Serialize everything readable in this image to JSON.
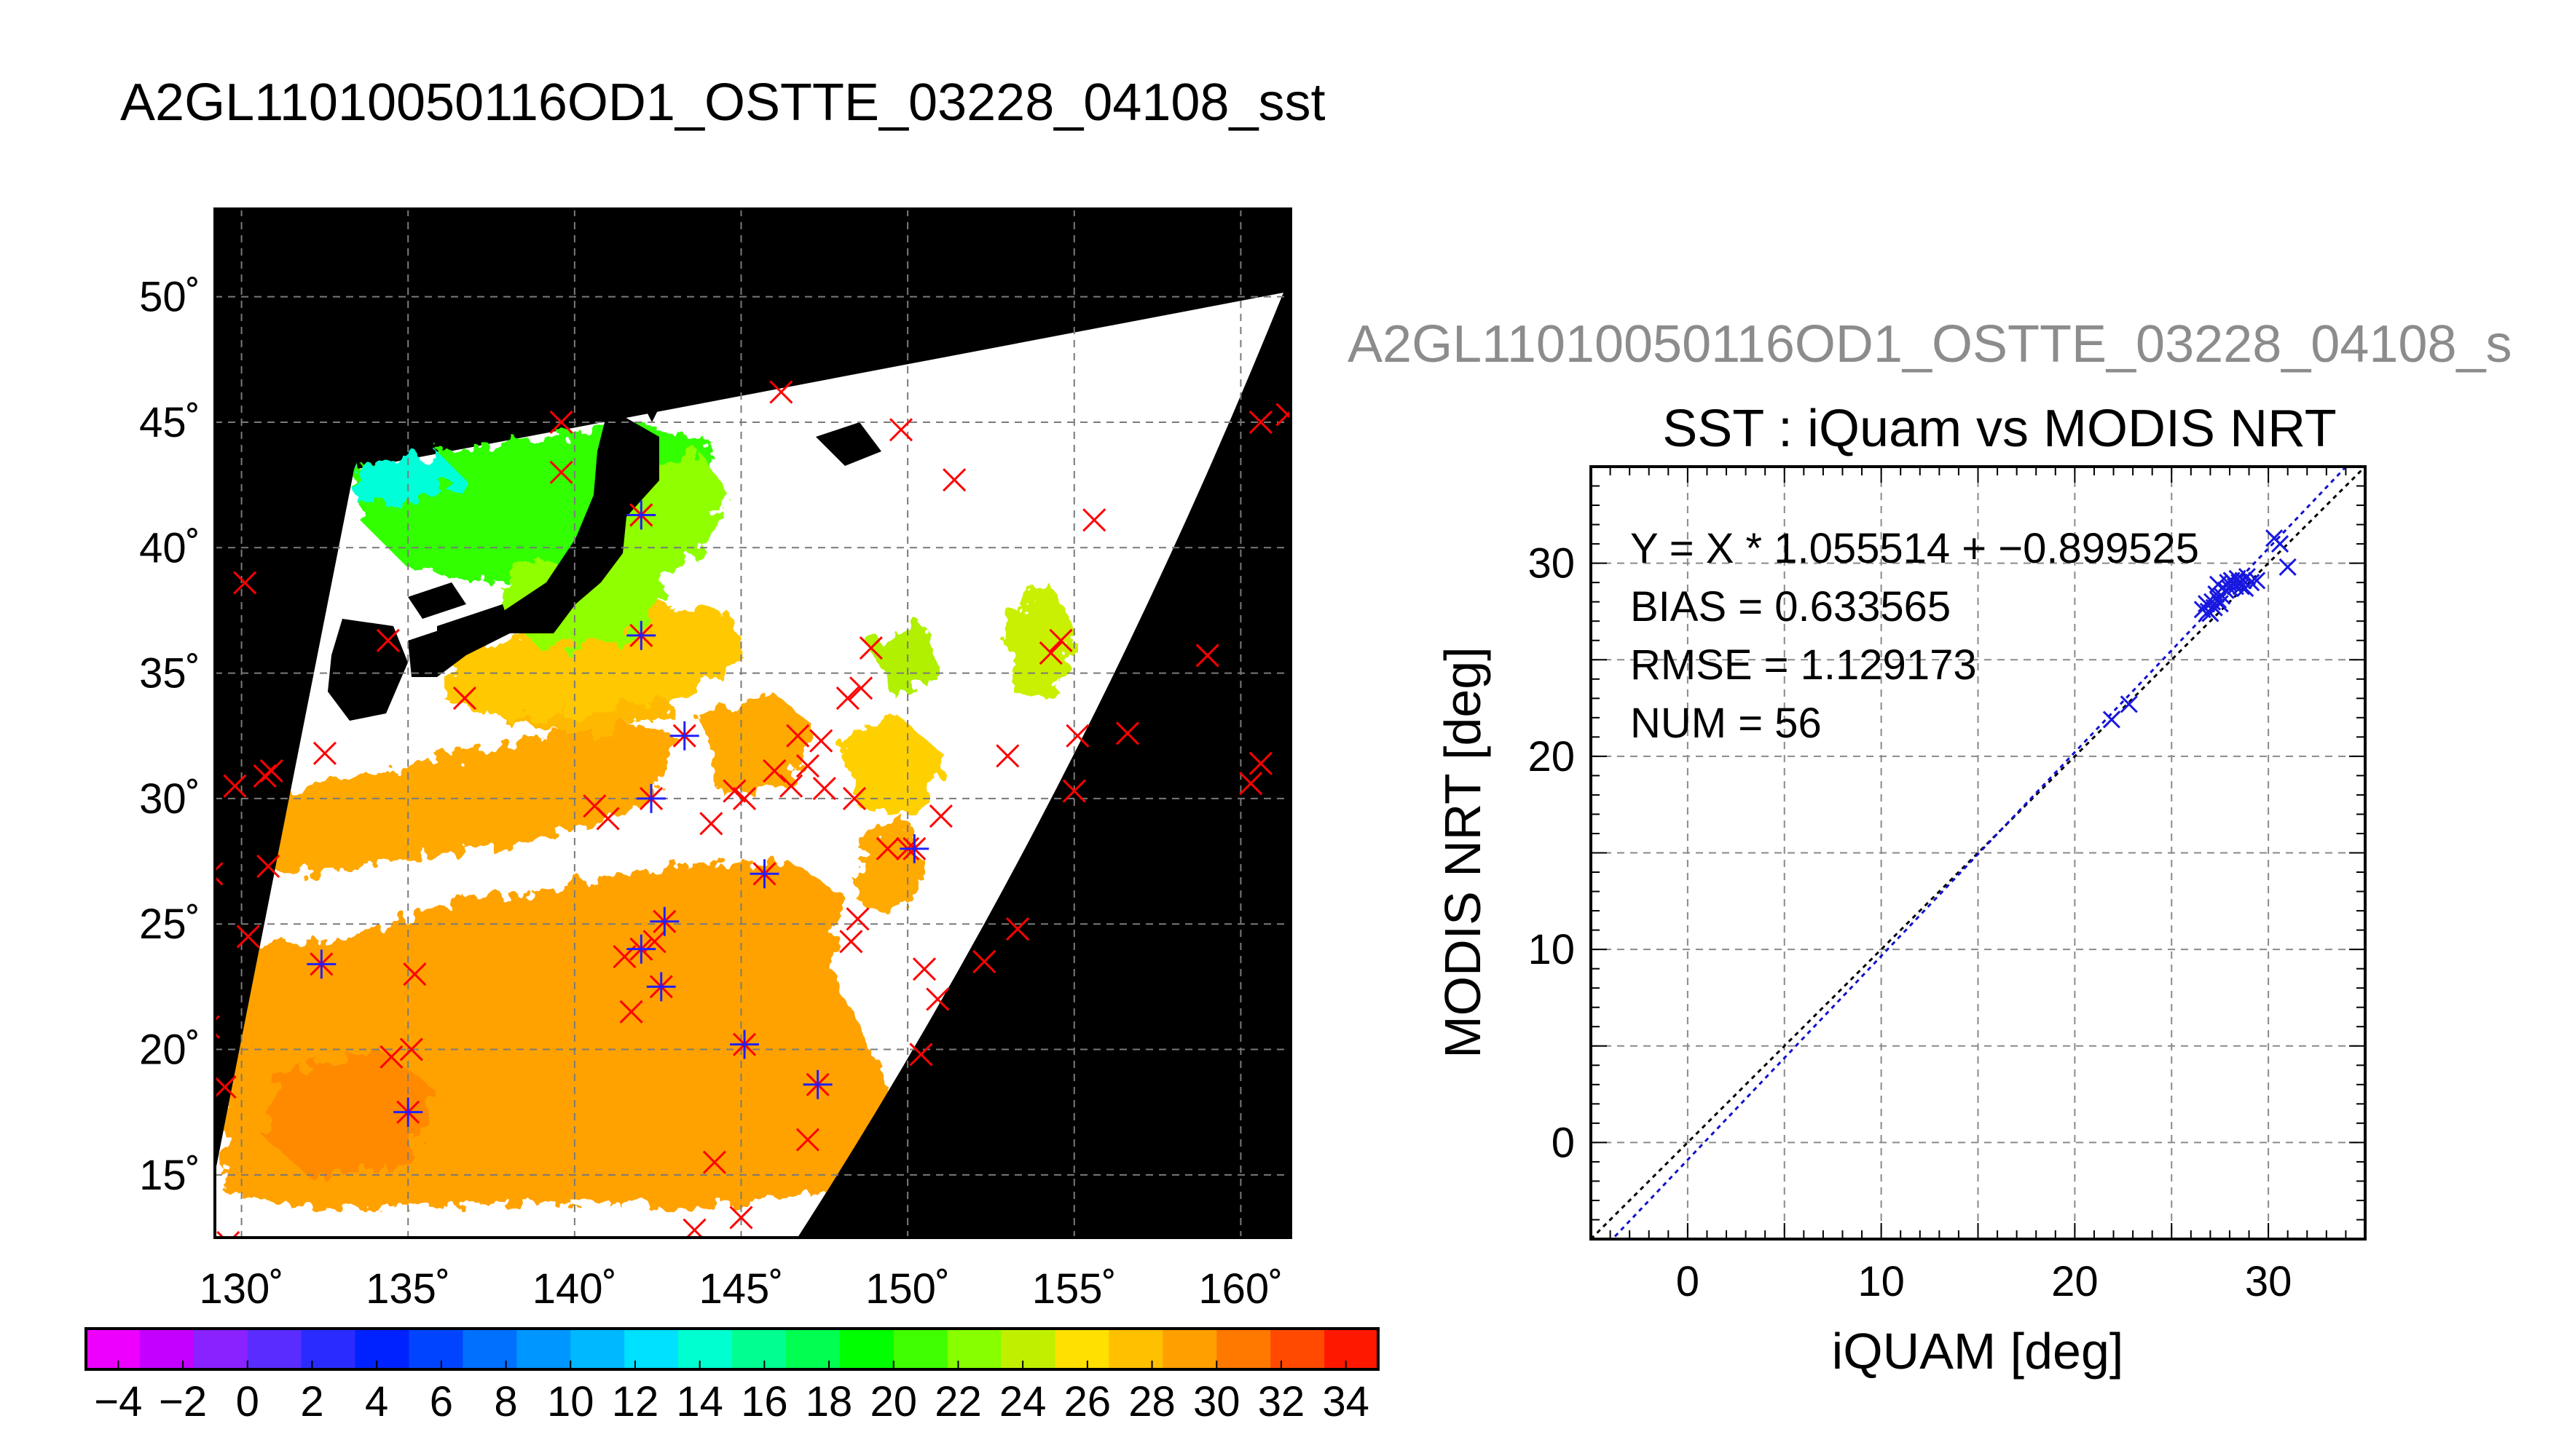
{
  "title": "A2GL11010050116OD1_OSTTE_03228_04108_sst",
  "scatter_title_partial": "A2GL11010050116OD1_OSTTE_03228_04108_s",
  "chart_data": [
    {
      "type": "map",
      "lon_ticks": [
        "130˚",
        "135˚",
        "140˚",
        "145˚",
        "150˚",
        "155˚",
        "160˚"
      ],
      "lat_ticks": [
        "50˚",
        "45˚",
        "40˚",
        "35˚",
        "30˚",
        "25˚",
        "20˚",
        "15˚"
      ],
      "lon_range": [
        129.2,
        161.5
      ],
      "lat_range": [
        12.5,
        53.5
      ],
      "grid": true,
      "colorbar": {
        "ticks": [
          "−4",
          "−2",
          "0",
          "2",
          "4",
          "6",
          "8",
          "10",
          "12",
          "14",
          "16",
          "18",
          "20",
          "22",
          "24",
          "26",
          "28",
          "30",
          "32",
          "34"
        ],
        "range": [
          -5,
          35
        ],
        "colors": [
          "#ee00ff",
          "#c400ff",
          "#8a22ff",
          "#5a2cff",
          "#2a2cff",
          "#0022ff",
          "#0044ff",
          "#0070ff",
          "#0096ff",
          "#00b8ff",
          "#00e0ff",
          "#00ffd0",
          "#00ff90",
          "#00ff50",
          "#00ff00",
          "#40ff00",
          "#88ff00",
          "#c0f000",
          "#ffe000",
          "#ffc000",
          "#ffa000",
          "#ff7800",
          "#ff4a00",
          "#ff1800"
        ]
      },
      "markers_red_x": [
        [
          130.1,
          38.6
        ],
        [
          129.8,
          30.5
        ],
        [
          130.7,
          30.9
        ],
        [
          129.1,
          27.0
        ],
        [
          130.2,
          24.5
        ],
        [
          130.8,
          27.3
        ],
        [
          130.9,
          31.1
        ],
        [
          132.5,
          31.8
        ],
        [
          129.0,
          20.9
        ],
        [
          129.5,
          18.5
        ],
        [
          129.6,
          12.3
        ],
        [
          134.5,
          19.7
        ],
        [
          135.2,
          23.0
        ],
        [
          135.1,
          20.0
        ],
        [
          134.4,
          36.3
        ],
        [
          136.7,
          34.0
        ],
        [
          139.6,
          45.0
        ],
        [
          139.6,
          43.0
        ],
        [
          141.0,
          29.2
        ],
        [
          140.6,
          29.7
        ],
        [
          141.5,
          23.7
        ],
        [
          142.4,
          24.3
        ],
        [
          141.7,
          21.5
        ],
        [
          142.0,
          41.3
        ],
        [
          144.8,
          30.3
        ],
        [
          144.1,
          29.0
        ],
        [
          145.1,
          30.0
        ],
        [
          146.7,
          32.5
        ],
        [
          146.5,
          30.5
        ],
        [
          146.0,
          31.1
        ],
        [
          147.0,
          31.3
        ],
        [
          147.5,
          30.4
        ],
        [
          148.2,
          34.0
        ],
        [
          147.4,
          32.3
        ],
        [
          148.6,
          34.4
        ],
        [
          148.4,
          30.0
        ],
        [
          148.9,
          36.0
        ],
        [
          149.4,
          28.0
        ],
        [
          148.3,
          24.3
        ],
        [
          148.5,
          25.2
        ],
        [
          144.2,
          15.5
        ],
        [
          145.0,
          13.3
        ],
        [
          143.6,
          12.8
        ],
        [
          147.0,
          16.4
        ],
        [
          146.2,
          46.2
        ],
        [
          149.8,
          44.7
        ],
        [
          151.4,
          42.7
        ],
        [
          155.6,
          41.1
        ],
        [
          150.0,
          28.0
        ],
        [
          151.0,
          29.3
        ],
        [
          153.0,
          31.7
        ],
        [
          150.5,
          23.2
        ],
        [
          150.9,
          22.0
        ],
        [
          152.3,
          23.5
        ],
        [
          153.3,
          24.8
        ],
        [
          150.4,
          19.8
        ],
        [
          154.6,
          36.3
        ],
        [
          154.3,
          35.8
        ],
        [
          155.1,
          32.5
        ],
        [
          156.6,
          32.6
        ],
        [
          155.0,
          30.3
        ],
        [
          159.0,
          35.7
        ],
        [
          160.6,
          45.0
        ],
        [
          161.4,
          45.3
        ],
        [
          160.6,
          31.4
        ],
        [
          160.3,
          30.6
        ]
      ],
      "markers_blue_star": [
        [
          132.4,
          23.4
        ],
        [
          135.0,
          17.5
        ],
        [
          142.0,
          36.5
        ],
        [
          143.3,
          32.5
        ],
        [
          142.3,
          30.0
        ],
        [
          145.7,
          27.0
        ],
        [
          142.0,
          24.0
        ],
        [
          142.7,
          25.1
        ],
        [
          142.6,
          22.5
        ],
        [
          145.1,
          20.2
        ],
        [
          147.3,
          18.6
        ],
        [
          150.2,
          28.0
        ],
        [
          142.0,
          41.3
        ]
      ]
    },
    {
      "type": "scatter",
      "title": "SST : iQuam vs MODIS NRT",
      "xlabel": "iQUAM [deg]",
      "ylabel": "MODIS NRT [deg]",
      "xlim": [
        -5,
        35
      ],
      "ylim": [
        -5,
        35
      ],
      "xticks": [
        "0",
        "10",
        "20",
        "30"
      ],
      "yticks": [
        "0",
        "10",
        "20",
        "30"
      ],
      "grid": true,
      "stats": [
        "Y = X * 1.055514 + −0.899525",
        "BIAS = 0.633565",
        "RMSE = 1.129173",
        "NUM = 56"
      ],
      "fit": {
        "slope": 1.055514,
        "intercept": -0.899525
      },
      "points": [
        [
          21.9,
          21.9
        ],
        [
          22.8,
          22.7
        ],
        [
          26.6,
          27.6
        ],
        [
          26.8,
          27.9
        ],
        [
          27.0,
          27.4
        ],
        [
          27.1,
          28.0
        ],
        [
          27.2,
          27.7
        ],
        [
          27.3,
          28.4
        ],
        [
          27.4,
          28.9
        ],
        [
          27.5,
          27.9
        ],
        [
          27.6,
          28.3
        ],
        [
          27.8,
          28.6
        ],
        [
          27.9,
          29.0
        ],
        [
          28.0,
          28.7
        ],
        [
          28.1,
          29.1
        ],
        [
          28.2,
          29.0
        ],
        [
          28.3,
          28.8
        ],
        [
          28.4,
          29.2
        ],
        [
          28.5,
          29.0
        ],
        [
          28.6,
          28.8
        ],
        [
          28.7,
          29.1
        ],
        [
          28.9,
          29.3
        ],
        [
          29.1,
          29.0
        ],
        [
          29.4,
          29.1
        ],
        [
          30.3,
          31.3
        ],
        [
          30.6,
          31.0
        ],
        [
          31.0,
          29.8
        ],
        [
          26.9,
          27.5
        ],
        [
          27.4,
          28.1
        ],
        [
          28.8,
          28.7
        ]
      ]
    }
  ]
}
